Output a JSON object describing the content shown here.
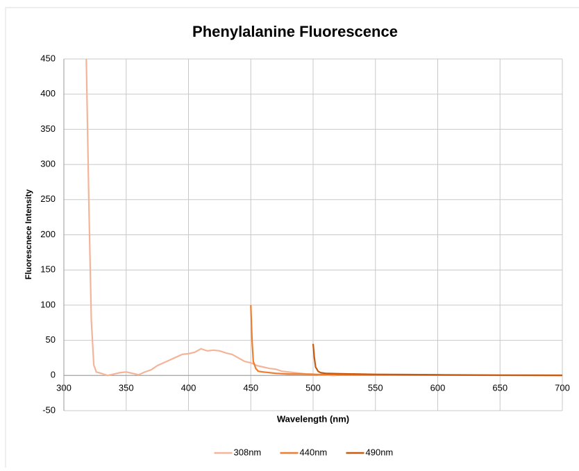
{
  "chart_data": {
    "type": "line",
    "title": "Phenylalanine Fluorescence",
    "x_label": "Wavelength (nm)",
    "y_label": "Fluorescnece Intensity",
    "xlim": [
      300,
      700
    ],
    "xticks": [
      300,
      350,
      400,
      450,
      500,
      550,
      600,
      650,
      700
    ],
    "ylim": [
      -50,
      450
    ],
    "yticks": [
      -50,
      0,
      50,
      100,
      150,
      200,
      250,
      300,
      350,
      400,
      450
    ],
    "grid": true,
    "legend": "bottom",
    "series": [
      {
        "name": "308nm",
        "color": "#f4b49a",
        "x": [
          318,
          320,
          322,
          324,
          326,
          330,
          335,
          340,
          345,
          350,
          355,
          360,
          365,
          370,
          375,
          380,
          385,
          390,
          395,
          400,
          405,
          410,
          415,
          420,
          425,
          430,
          435,
          440,
          445,
          450,
          455,
          460,
          465,
          470,
          475,
          480,
          485,
          490,
          495,
          500,
          505,
          510,
          515,
          518
        ],
        "values": [
          450,
          250,
          80,
          15,
          5,
          3,
          0,
          2,
          4,
          5,
          3,
          1,
          5,
          8,
          14,
          18,
          22,
          26,
          30,
          31,
          33,
          38,
          35,
          36,
          35,
          32,
          30,
          25,
          20,
          18,
          14,
          12,
          10,
          9,
          6,
          5,
          4,
          3,
          2,
          2,
          1,
          1,
          0,
          0
        ]
      },
      {
        "name": "440nm",
        "color": "#ed7d31",
        "x": [
          450,
          451,
          452,
          454,
          456,
          460,
          470,
          480,
          490,
          500,
          550,
          600,
          650,
          700
        ],
        "values": [
          100,
          50,
          20,
          10,
          6,
          5,
          3,
          2,
          2,
          1.5,
          1,
          0.5,
          0.3,
          0
        ]
      },
      {
        "name": "490nm",
        "color": "#c55a11",
        "x": [
          500,
          501,
          502,
          504,
          506,
          510,
          520,
          550,
          600,
          650,
          700
        ],
        "values": [
          45,
          25,
          12,
          6,
          4,
          3,
          2.5,
          1.5,
          1,
          0.5,
          0.3
        ]
      }
    ]
  }
}
